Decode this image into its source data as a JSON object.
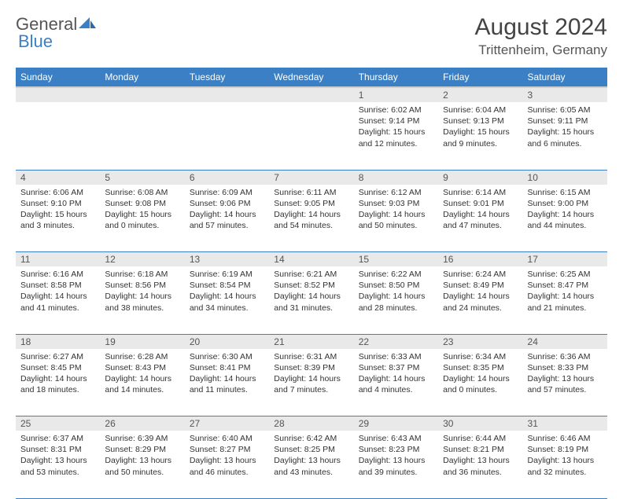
{
  "header": {
    "logo_part1": "General",
    "logo_part2": "Blue",
    "month_title": "August 2024",
    "location": "Trittenheim, Germany"
  },
  "colors": {
    "header_bg": "#3b7fc4",
    "header_text": "#ffffff",
    "daynum_bg": "#e9e9e9",
    "border": "#3b7fc4",
    "text": "#333333"
  },
  "weekdays": [
    "Sunday",
    "Monday",
    "Tuesday",
    "Wednesday",
    "Thursday",
    "Friday",
    "Saturday"
  ],
  "weeks": [
    [
      {
        "day": "",
        "lines": []
      },
      {
        "day": "",
        "lines": []
      },
      {
        "day": "",
        "lines": []
      },
      {
        "day": "",
        "lines": []
      },
      {
        "day": "1",
        "lines": [
          "Sunrise: 6:02 AM",
          "Sunset: 9:14 PM",
          "Daylight: 15 hours and 12 minutes."
        ]
      },
      {
        "day": "2",
        "lines": [
          "Sunrise: 6:04 AM",
          "Sunset: 9:13 PM",
          "Daylight: 15 hours and 9 minutes."
        ]
      },
      {
        "day": "3",
        "lines": [
          "Sunrise: 6:05 AM",
          "Sunset: 9:11 PM",
          "Daylight: 15 hours and 6 minutes."
        ]
      }
    ],
    [
      {
        "day": "4",
        "lines": [
          "Sunrise: 6:06 AM",
          "Sunset: 9:10 PM",
          "Daylight: 15 hours and 3 minutes."
        ]
      },
      {
        "day": "5",
        "lines": [
          "Sunrise: 6:08 AM",
          "Sunset: 9:08 PM",
          "Daylight: 15 hours and 0 minutes."
        ]
      },
      {
        "day": "6",
        "lines": [
          "Sunrise: 6:09 AM",
          "Sunset: 9:06 PM",
          "Daylight: 14 hours and 57 minutes."
        ]
      },
      {
        "day": "7",
        "lines": [
          "Sunrise: 6:11 AM",
          "Sunset: 9:05 PM",
          "Daylight: 14 hours and 54 minutes."
        ]
      },
      {
        "day": "8",
        "lines": [
          "Sunrise: 6:12 AM",
          "Sunset: 9:03 PM",
          "Daylight: 14 hours and 50 minutes."
        ]
      },
      {
        "day": "9",
        "lines": [
          "Sunrise: 6:14 AM",
          "Sunset: 9:01 PM",
          "Daylight: 14 hours and 47 minutes."
        ]
      },
      {
        "day": "10",
        "lines": [
          "Sunrise: 6:15 AM",
          "Sunset: 9:00 PM",
          "Daylight: 14 hours and 44 minutes."
        ]
      }
    ],
    [
      {
        "day": "11",
        "lines": [
          "Sunrise: 6:16 AM",
          "Sunset: 8:58 PM",
          "Daylight: 14 hours and 41 minutes."
        ]
      },
      {
        "day": "12",
        "lines": [
          "Sunrise: 6:18 AM",
          "Sunset: 8:56 PM",
          "Daylight: 14 hours and 38 minutes."
        ]
      },
      {
        "day": "13",
        "lines": [
          "Sunrise: 6:19 AM",
          "Sunset: 8:54 PM",
          "Daylight: 14 hours and 34 minutes."
        ]
      },
      {
        "day": "14",
        "lines": [
          "Sunrise: 6:21 AM",
          "Sunset: 8:52 PM",
          "Daylight: 14 hours and 31 minutes."
        ]
      },
      {
        "day": "15",
        "lines": [
          "Sunrise: 6:22 AM",
          "Sunset: 8:50 PM",
          "Daylight: 14 hours and 28 minutes."
        ]
      },
      {
        "day": "16",
        "lines": [
          "Sunrise: 6:24 AM",
          "Sunset: 8:49 PM",
          "Daylight: 14 hours and 24 minutes."
        ]
      },
      {
        "day": "17",
        "lines": [
          "Sunrise: 6:25 AM",
          "Sunset: 8:47 PM",
          "Daylight: 14 hours and 21 minutes."
        ]
      }
    ],
    [
      {
        "day": "18",
        "lines": [
          "Sunrise: 6:27 AM",
          "Sunset: 8:45 PM",
          "Daylight: 14 hours and 18 minutes."
        ]
      },
      {
        "day": "19",
        "lines": [
          "Sunrise: 6:28 AM",
          "Sunset: 8:43 PM",
          "Daylight: 14 hours and 14 minutes."
        ]
      },
      {
        "day": "20",
        "lines": [
          "Sunrise: 6:30 AM",
          "Sunset: 8:41 PM",
          "Daylight: 14 hours and 11 minutes."
        ]
      },
      {
        "day": "21",
        "lines": [
          "Sunrise: 6:31 AM",
          "Sunset: 8:39 PM",
          "Daylight: 14 hours and 7 minutes."
        ]
      },
      {
        "day": "22",
        "lines": [
          "Sunrise: 6:33 AM",
          "Sunset: 8:37 PM",
          "Daylight: 14 hours and 4 minutes."
        ]
      },
      {
        "day": "23",
        "lines": [
          "Sunrise: 6:34 AM",
          "Sunset: 8:35 PM",
          "Daylight: 14 hours and 0 minutes."
        ]
      },
      {
        "day": "24",
        "lines": [
          "Sunrise: 6:36 AM",
          "Sunset: 8:33 PM",
          "Daylight: 13 hours and 57 minutes."
        ]
      }
    ],
    [
      {
        "day": "25",
        "lines": [
          "Sunrise: 6:37 AM",
          "Sunset: 8:31 PM",
          "Daylight: 13 hours and 53 minutes."
        ]
      },
      {
        "day": "26",
        "lines": [
          "Sunrise: 6:39 AM",
          "Sunset: 8:29 PM",
          "Daylight: 13 hours and 50 minutes."
        ]
      },
      {
        "day": "27",
        "lines": [
          "Sunrise: 6:40 AM",
          "Sunset: 8:27 PM",
          "Daylight: 13 hours and 46 minutes."
        ]
      },
      {
        "day": "28",
        "lines": [
          "Sunrise: 6:42 AM",
          "Sunset: 8:25 PM",
          "Daylight: 13 hours and 43 minutes."
        ]
      },
      {
        "day": "29",
        "lines": [
          "Sunrise: 6:43 AM",
          "Sunset: 8:23 PM",
          "Daylight: 13 hours and 39 minutes."
        ]
      },
      {
        "day": "30",
        "lines": [
          "Sunrise: 6:44 AM",
          "Sunset: 8:21 PM",
          "Daylight: 13 hours and 36 minutes."
        ]
      },
      {
        "day": "31",
        "lines": [
          "Sunrise: 6:46 AM",
          "Sunset: 8:19 PM",
          "Daylight: 13 hours and 32 minutes."
        ]
      }
    ]
  ]
}
